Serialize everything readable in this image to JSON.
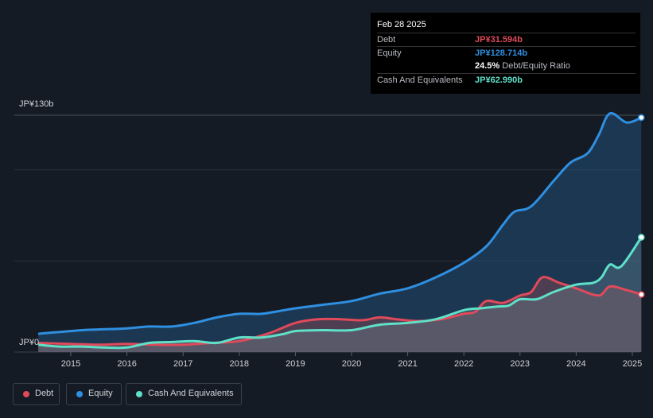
{
  "tooltip": {
    "date": "Feb 28 2025",
    "rows": [
      {
        "label": "Debt",
        "value": "JP¥31.594b",
        "color": "#e04a5a"
      },
      {
        "label": "Equity",
        "value": "JP¥128.714b",
        "color": "#2f8fe0"
      },
      {
        "label": "",
        "value": "24.5%",
        "suffix": "Debt/Equity Ratio",
        "color": "#ffffff"
      },
      {
        "label": "Cash And Equivalents",
        "value": "JP¥62.990b",
        "color": "#5fe0c8"
      }
    ]
  },
  "legend": [
    {
      "label": "Debt",
      "color": "#e04a5a"
    },
    {
      "label": "Equity",
      "color": "#2f8fe0"
    },
    {
      "label": "Cash And Equivalents",
      "color": "#5fe0c8"
    }
  ],
  "chart_data": {
    "type": "area",
    "ylim": [
      0,
      130
    ],
    "y_tick_labels": [
      "JP¥130b",
      "JP¥0"
    ],
    "x_tick_labels": [
      "2015",
      "2016",
      "2017",
      "2018",
      "2019",
      "2020",
      "2021",
      "2022",
      "2023",
      "2024",
      "2025"
    ],
    "grid": true,
    "legend_position": "bottom-left",
    "series": [
      {
        "name": "Debt",
        "color": "#e04a5a",
        "x": [
          2014.42,
          2015.0,
          2015.5,
          2016.0,
          2016.5,
          2017.0,
          2017.5,
          2018.0,
          2018.5,
          2019.0,
          2019.4,
          2019.8,
          2020.2,
          2020.5,
          2020.8,
          2021.2,
          2021.6,
          2022.0,
          2022.2,
          2022.4,
          2022.7,
          2023.0,
          2023.2,
          2023.4,
          2023.7,
          2024.0,
          2024.4,
          2024.6,
          2024.9,
          2025.16
        ],
        "values": [
          5,
          4.5,
          4,
          4.5,
          4,
          4,
          5,
          6,
          10,
          16,
          18,
          18,
          17.5,
          19,
          18,
          17,
          18,
          21,
          22,
          28,
          27,
          31,
          33,
          41,
          38,
          35,
          31,
          36,
          34,
          31.594
        ]
      },
      {
        "name": "Equity",
        "color": "#2f8fe0",
        "x": [
          2014.42,
          2014.8,
          2015.2,
          2015.6,
          2016.0,
          2016.4,
          2016.8,
          2017.2,
          2017.6,
          2018.0,
          2018.4,
          2018.8,
          2019.0,
          2019.5,
          2020.0,
          2020.5,
          2021.0,
          2021.5,
          2022.0,
          2022.4,
          2022.7,
          2022.9,
          2023.2,
          2023.6,
          2023.9,
          2024.2,
          2024.4,
          2024.6,
          2024.9,
          2025.16
        ],
        "values": [
          10,
          11,
          12,
          12.5,
          13,
          14,
          14,
          16,
          19,
          21,
          21,
          23,
          24,
          26,
          28,
          32,
          35,
          41,
          49,
          58,
          70,
          77,
          80,
          94,
          104,
          109,
          119,
          131,
          126,
          128.714
        ]
      },
      {
        "name": "Cash And Equivalents",
        "color": "#5fe0c8",
        "x": [
          2014.42,
          2014.8,
          2015.2,
          2015.6,
          2016.0,
          2016.4,
          2016.8,
          2017.2,
          2017.6,
          2018.0,
          2018.4,
          2018.8,
          2019.0,
          2019.5,
          2020.0,
          2020.5,
          2021.0,
          2021.5,
          2022.0,
          2022.3,
          2022.6,
          2022.8,
          2023.0,
          2023.3,
          2023.6,
          2024.0,
          2024.3,
          2024.45,
          2024.6,
          2024.8,
          2025.16
        ],
        "values": [
          4,
          3,
          3,
          2.5,
          2.5,
          5,
          5.5,
          6,
          5,
          8,
          8,
          10,
          11.5,
          12,
          12,
          15,
          16,
          18,
          23,
          24,
          25,
          25.5,
          29,
          29,
          33,
          37,
          38,
          41,
          48,
          47,
          62.99
        ]
      }
    ]
  }
}
